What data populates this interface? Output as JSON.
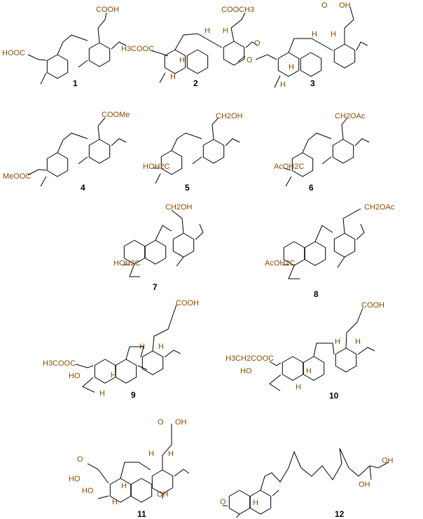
{
  "compounds": [
    {
      "id": "1",
      "groups": [
        "COOH",
        "HOOC"
      ]
    },
    {
      "id": "2",
      "groups": [
        "COOCH3",
        "H3COOC"
      ],
      "stereo_h": [
        "H",
        "H",
        "H",
        "H"
      ]
    },
    {
      "id": "3",
      "groups": [
        "O",
        "OH",
        "O",
        "O"
      ],
      "stereo_h": [
        "H",
        "H",
        "H",
        "H"
      ]
    },
    {
      "id": "4",
      "groups": [
        "COOMe",
        "MeOOC"
      ]
    },
    {
      "id": "5",
      "groups": [
        "CH2OH",
        "HOH2C"
      ]
    },
    {
      "id": "6",
      "groups": [
        "CH2OAc",
        "AcOH2C"
      ]
    },
    {
      "id": "7",
      "groups": [
        "CH2OH",
        "HOH2C"
      ]
    },
    {
      "id": "8",
      "groups": [
        "CH2OAc",
        "AcOH2C"
      ]
    },
    {
      "id": "9",
      "groups": [
        "COOH",
        "H3COOC",
        "HO"
      ],
      "stereo_h": [
        "H",
        "H",
        "H",
        "H"
      ]
    },
    {
      "id": "10",
      "groups": [
        "COOH",
        "H3CH2COOC",
        "HO"
      ],
      "stereo_h": [
        "H",
        "H",
        "H",
        "H"
      ]
    },
    {
      "id": "11",
      "groups": [
        "O",
        "OH",
        "O",
        "HO",
        "HO",
        "OH"
      ],
      "stereo_h": [
        "H",
        "H",
        "H",
        "H"
      ]
    },
    {
      "id": "12",
      "groups": [
        "OH",
        "OH",
        "O"
      ],
      "stereo_h": [
        "H"
      ]
    }
  ]
}
